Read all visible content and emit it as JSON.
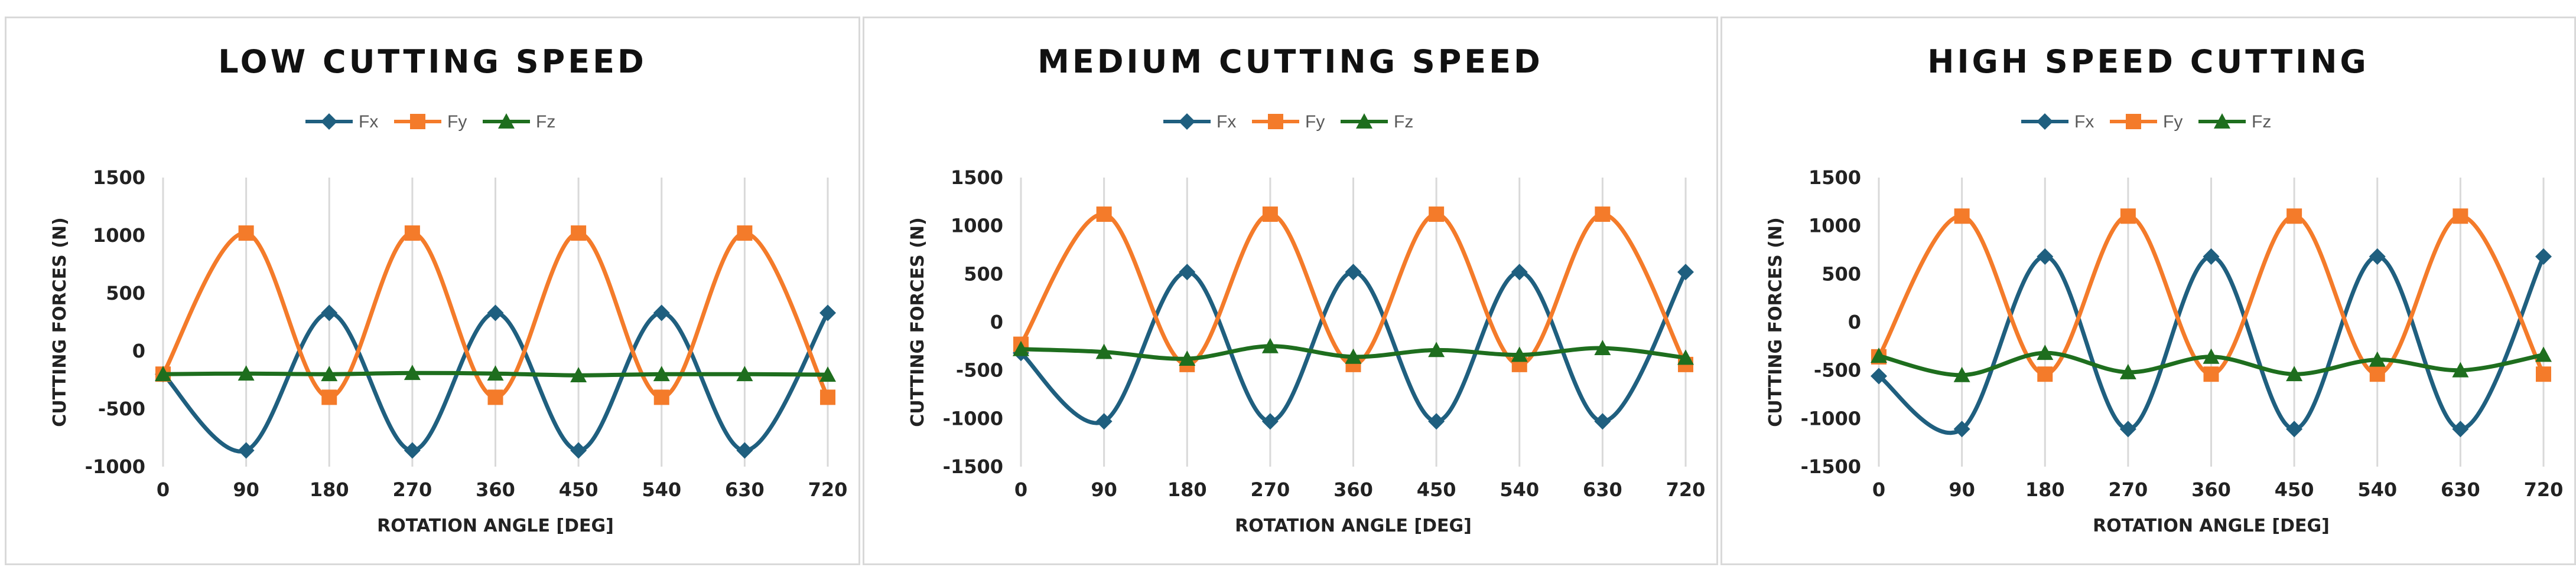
{
  "colors": {
    "Fx": "#1f5f7f",
    "Fy": "#f47b2a",
    "Fz": "#1e6e1e",
    "grid": "#d9d9d9",
    "border": "#d9d9d9"
  },
  "chart_data": [
    {
      "type": "line",
      "title": "LOW CUTTING SPEED",
      "xlabel": "ROTATION ANGLE [DEG]",
      "ylabel": "CUTTING FORCES (N)",
      "x": [
        0,
        90,
        180,
        270,
        360,
        450,
        540,
        630,
        720
      ],
      "xlim": [
        0,
        720
      ],
      "ylim": [
        -1000,
        1500
      ],
      "yticks": [
        -1000,
        -500,
        0,
        500,
        1000,
        1500
      ],
      "legend": "top",
      "grid": "vertical",
      "series": [
        {
          "name": "Fx",
          "values": [
            -200,
            -860,
            330,
            -860,
            330,
            -860,
            330,
            -860,
            330
          ]
        },
        {
          "name": "Fy",
          "values": [
            -200,
            1020,
            -400,
            1020,
            -400,
            1020,
            -400,
            1020,
            -400
          ]
        },
        {
          "name": "Fz",
          "values": [
            -200,
            -195,
            -200,
            -190,
            -195,
            -210,
            -200,
            -200,
            -205
          ]
        }
      ]
    },
    {
      "type": "line",
      "title": "MEDIUM CUTTING SPEED",
      "xlabel": "ROTATION ANGLE [DEG]",
      "ylabel": "CUTTING FORCES (N)",
      "x": [
        0,
        90,
        180,
        270,
        360,
        450,
        540,
        630,
        720
      ],
      "xlim": [
        0,
        720
      ],
      "ylim": [
        -1500,
        1500
      ],
      "yticks": [
        -1500,
        -1000,
        -500,
        0,
        500,
        1000,
        1500
      ],
      "legend": "top",
      "grid": "vertical",
      "series": [
        {
          "name": "Fx",
          "values": [
            -320,
            -1030,
            520,
            -1030,
            520,
            -1030,
            520,
            -1030,
            520
          ]
        },
        {
          "name": "Fy",
          "values": [
            -230,
            1120,
            -440,
            1120,
            -440,
            1120,
            -440,
            1120,
            -440
          ]
        },
        {
          "name": "Fz",
          "values": [
            -280,
            -310,
            -380,
            -250,
            -360,
            -290,
            -340,
            -270,
            -370
          ]
        }
      ]
    },
    {
      "type": "line",
      "title": "HIGH SPEED CUTTING",
      "xlabel": "ROTATION ANGLE [DEG]",
      "ylabel": "CUTTING FORCES (N)",
      "x": [
        0,
        90,
        180,
        270,
        360,
        450,
        540,
        630,
        720
      ],
      "xlim": [
        0,
        720
      ],
      "ylim": [
        -1500,
        1500
      ],
      "yticks": [
        -1500,
        -1000,
        -500,
        0,
        500,
        1000,
        1500
      ],
      "legend": "top",
      "grid": "vertical",
      "series": [
        {
          "name": "Fx",
          "values": [
            -560,
            -1110,
            680,
            -1110,
            680,
            -1110,
            680,
            -1110,
            680
          ]
        },
        {
          "name": "Fy",
          "values": [
            -360,
            1100,
            -540,
            1100,
            -540,
            1100,
            -540,
            1100,
            -540
          ]
        },
        {
          "name": "Fz",
          "values": [
            -350,
            -550,
            -320,
            -520,
            -360,
            -540,
            -390,
            -500,
            -340
          ]
        }
      ]
    }
  ]
}
